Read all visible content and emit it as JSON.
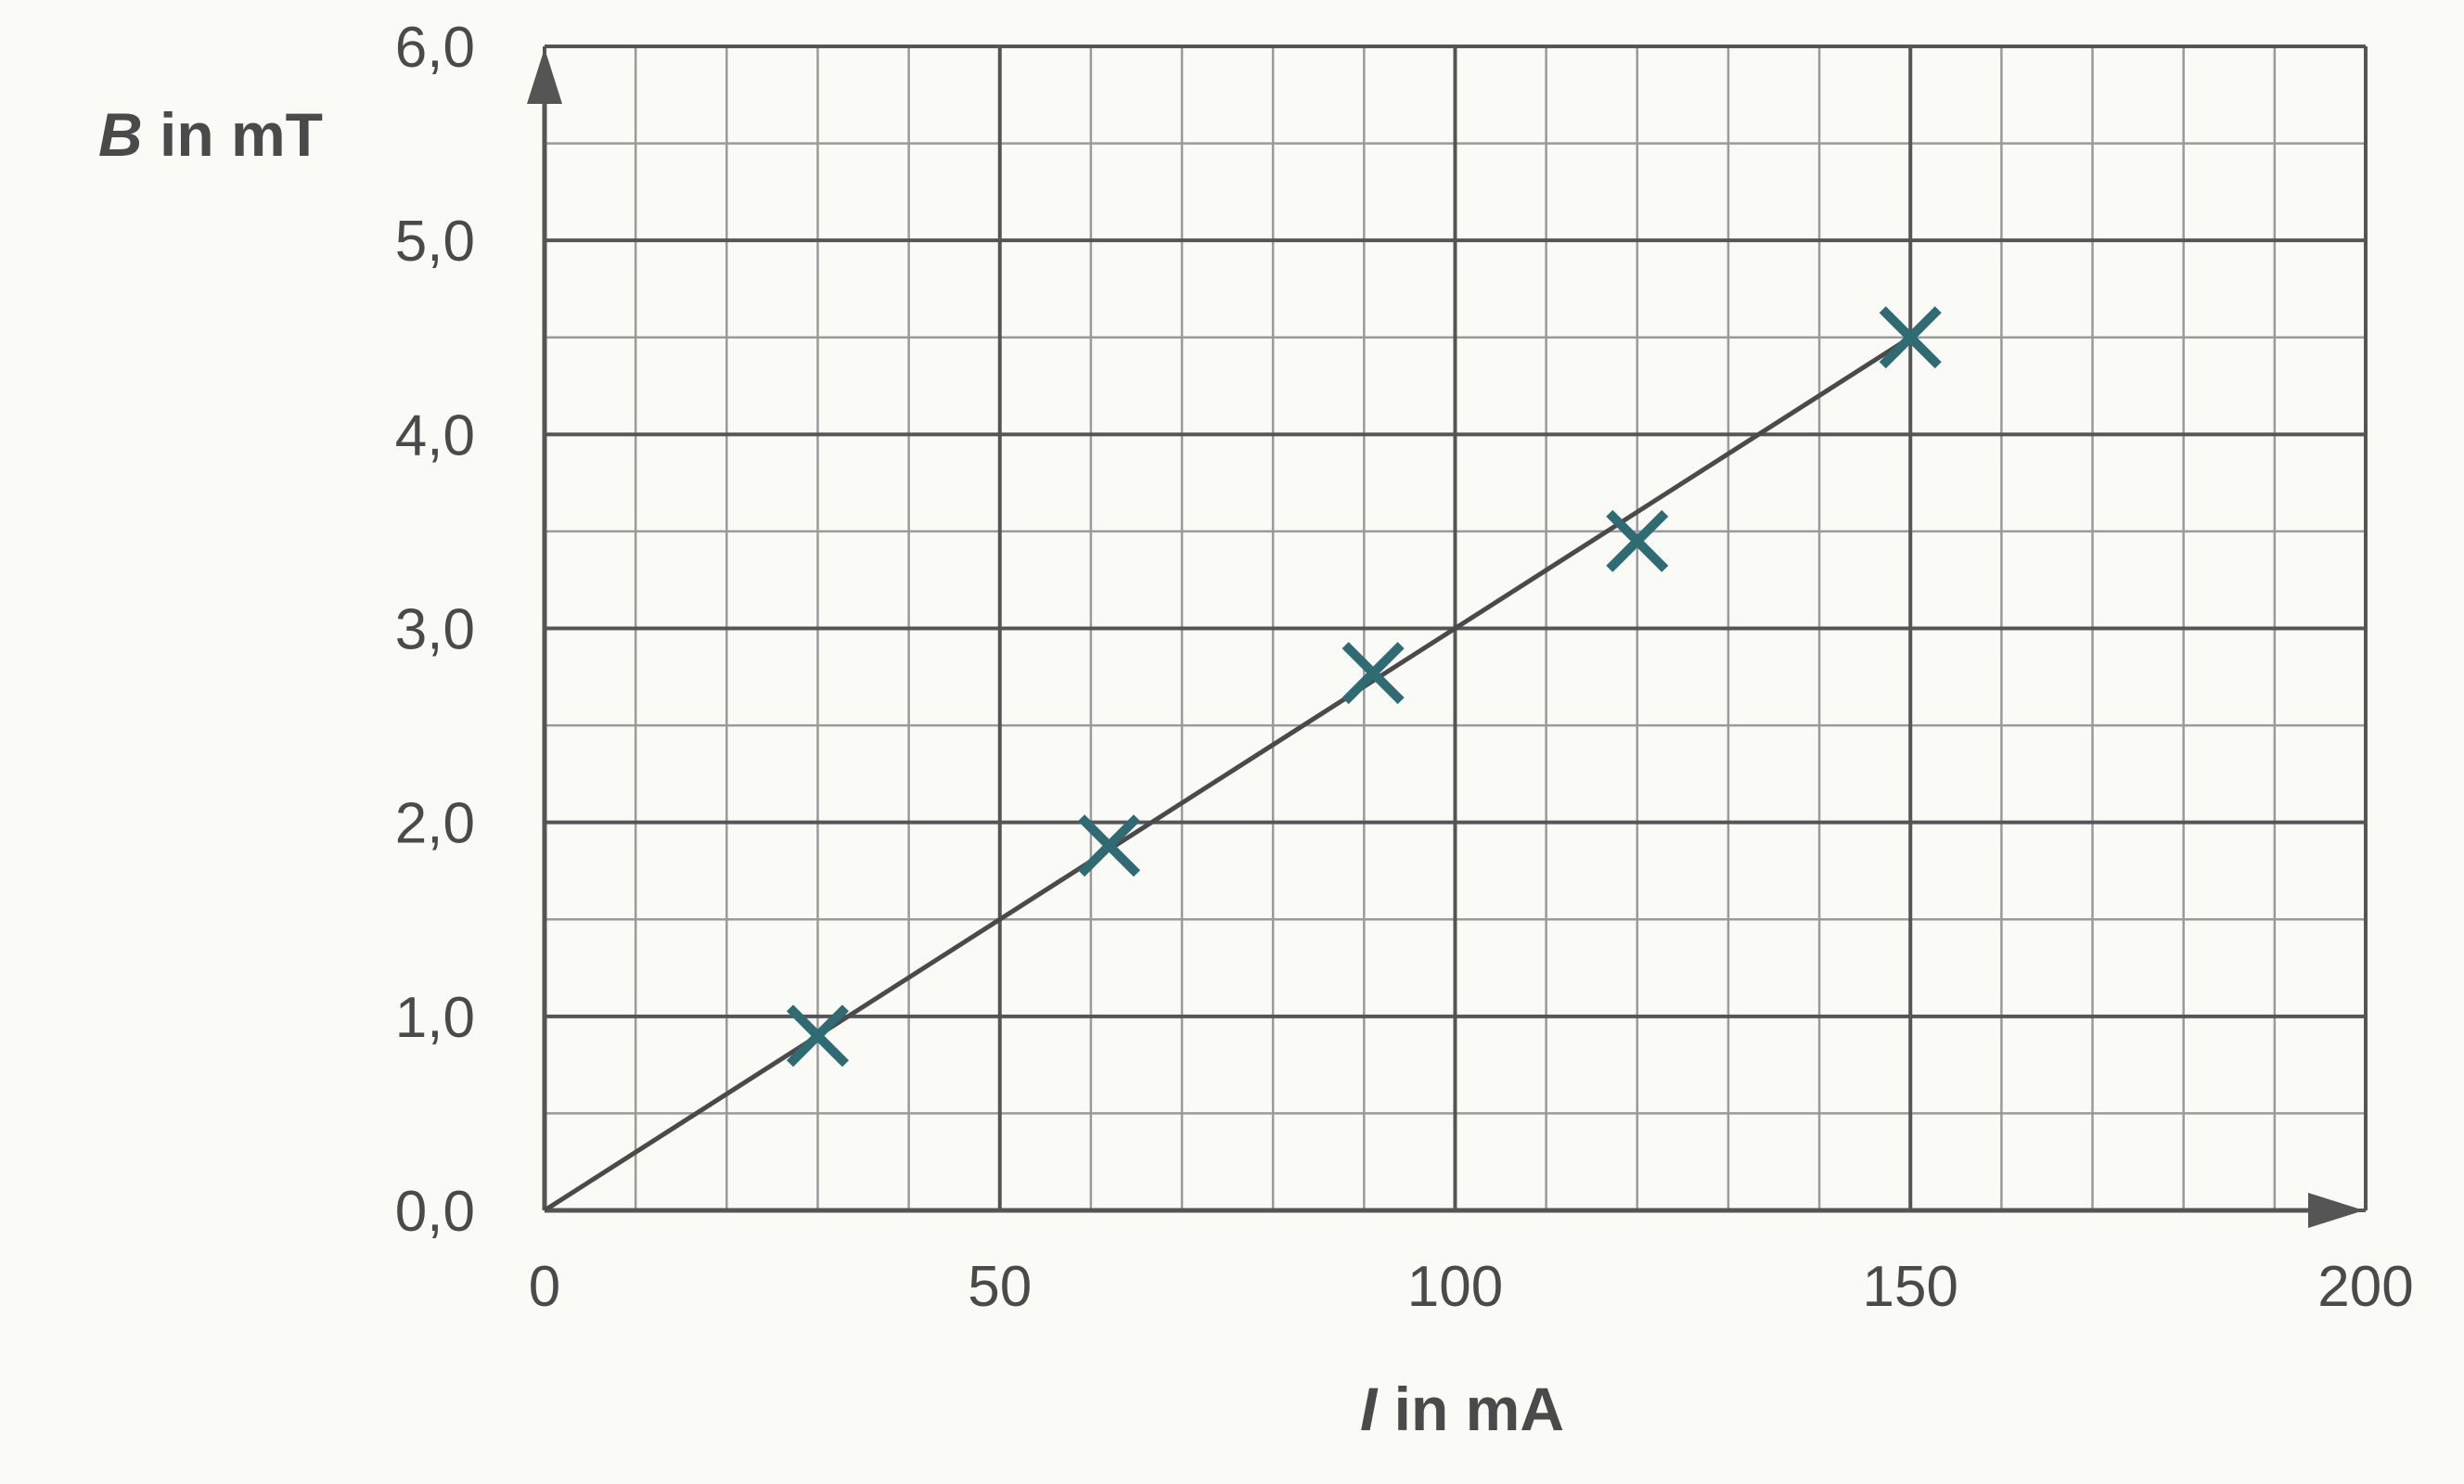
{
  "chart_data": {
    "type": "scatter",
    "xlabel": {
      "variable": "I",
      "unit_text": " in mA"
    },
    "ylabel": {
      "variable": "B",
      "unit_text": " in mT"
    },
    "xlim": [
      0,
      200
    ],
    "ylim": [
      0,
      6
    ],
    "x_ticks": [
      0,
      50,
      100,
      150,
      200
    ],
    "x_tick_labels": [
      "0",
      "50",
      "100",
      "150",
      "200"
    ],
    "y_ticks": [
      0,
      1,
      2,
      3,
      4,
      5,
      6
    ],
    "y_tick_labels": [
      "0,0",
      "1,0",
      "2,0",
      "3,0",
      "4,0",
      "5,0",
      "6,0"
    ],
    "x_minor_step": 10,
    "y_minor_step": 0.5,
    "grid": true,
    "series": [
      {
        "marker": "x",
        "color": "#2e6b73",
        "points": [
          {
            "x": 30,
            "y": 0.9
          },
          {
            "x": 62,
            "y": 1.88
          },
          {
            "x": 91,
            "y": 2.77
          },
          {
            "x": 120,
            "y": 3.45
          },
          {
            "x": 150,
            "y": 4.5
          }
        ]
      }
    ],
    "fit_line": {
      "from": [
        0,
        0
      ],
      "to": [
        150,
        4.5
      ],
      "color": "#4a4a4a"
    }
  }
}
